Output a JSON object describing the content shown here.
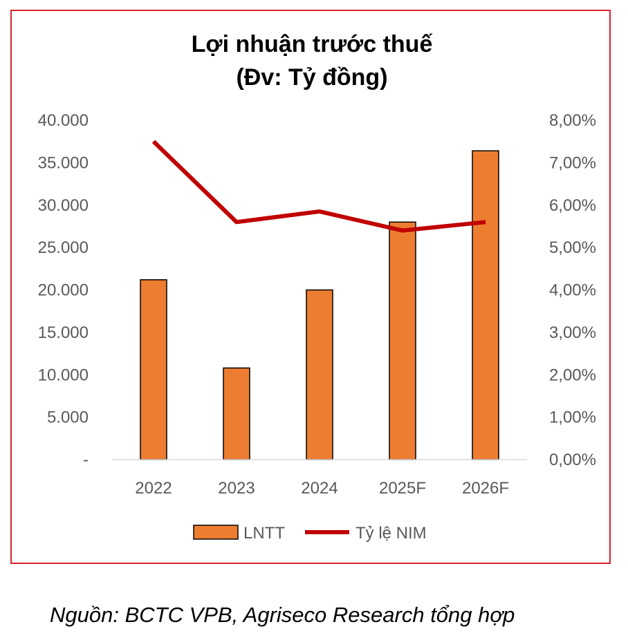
{
  "chart_data": {
    "type": "bar",
    "title": "Lợi nhuận trước thuế",
    "subtitle": "(Đv: Tỷ đồng)",
    "categories": [
      "2022",
      "2023",
      "2024",
      "2025F",
      "2026F"
    ],
    "series": [
      {
        "name": "LNTT",
        "type": "bar",
        "axis": "left",
        "color": "#ed7d31",
        "values": [
          21200,
          10800,
          20000,
          28000,
          36400
        ]
      },
      {
        "name": "Tỷ lệ NIM",
        "type": "line",
        "axis": "right",
        "color": "#c00000",
        "values": [
          7.5,
          5.6,
          5.85,
          5.4,
          5.6
        ]
      }
    ],
    "left_axis": {
      "ylim": [
        0,
        40000
      ],
      "ticks": [
        0,
        5000,
        10000,
        15000,
        20000,
        25000,
        30000,
        35000,
        40000
      ],
      "tick_labels": [
        "-",
        "5.000",
        "10.000",
        "15.000",
        "20.000",
        "25.000",
        "30.000",
        "35.000",
        "40.000"
      ]
    },
    "right_axis": {
      "ylim": [
        0,
        8
      ],
      "ticks": [
        0,
        1,
        2,
        3,
        4,
        5,
        6,
        7,
        8
      ],
      "tick_labels": [
        "0,00%",
        "1,00%",
        "2,00%",
        "3,00%",
        "4,00%",
        "5,00%",
        "6,00%",
        "7,00%",
        "8,00%"
      ]
    },
    "grid": false,
    "legend_position": "bottom"
  },
  "source_note": "Nguồn: BCTC VPB, Agriseco Research tổng hợp",
  "frame_color": "#d9212e"
}
